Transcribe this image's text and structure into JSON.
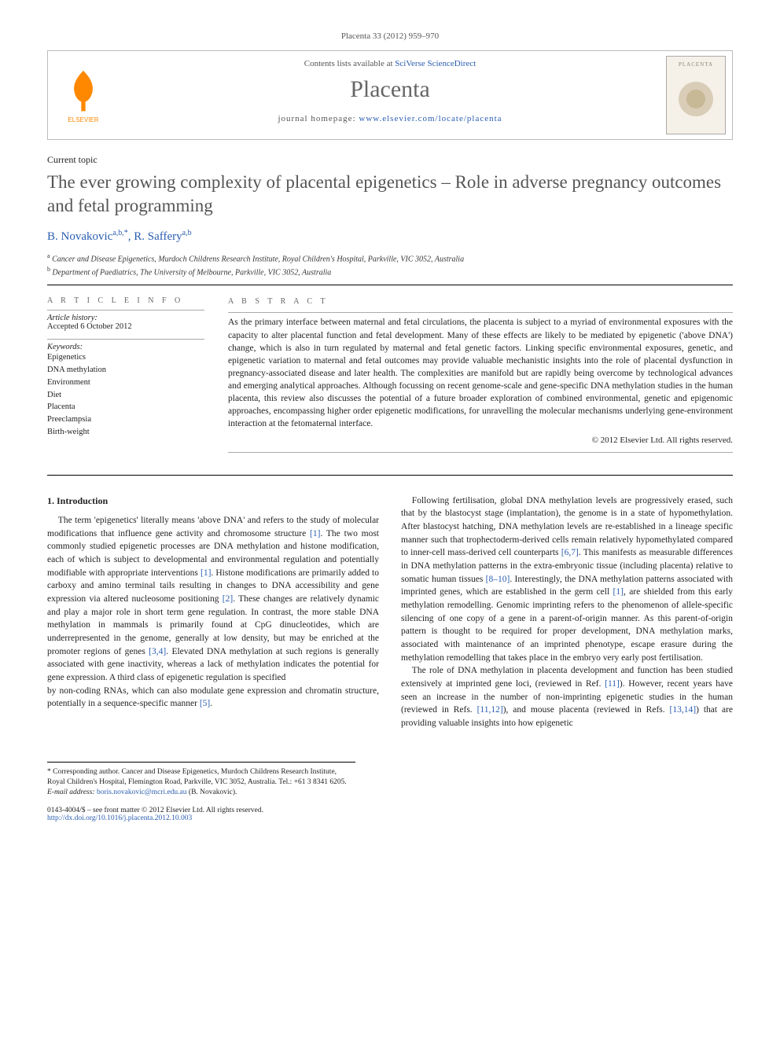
{
  "page_header": "Placenta 33 (2012) 959–970",
  "masthead": {
    "contents_prefix": "Contents lists available at ",
    "contents_link": "SciVerse ScienceDirect",
    "journal": "Placenta",
    "homepage_prefix": "journal homepage: ",
    "homepage_url": "www.elsevier.com/locate/placenta",
    "publisher_logo_label": "ELSEVIER",
    "cover_label": "PLACENTA"
  },
  "article": {
    "type": "Current topic",
    "title": "The ever growing complexity of placental epigenetics – Role in adverse pregnancy outcomes and fetal programming",
    "authors_html": "B. Novakovic",
    "author1": "B. Novakovic",
    "author1_sup": "a,b,*",
    "author2": "R. Saffery",
    "author2_sup": "a,b",
    "affiliations": [
      {
        "sup": "a",
        "text": "Cancer and Disease Epigenetics, Murdoch Childrens Research Institute, Royal Children's Hospital, Parkville, VIC 3052, Australia"
      },
      {
        "sup": "b",
        "text": "Department of Paediatrics, The University of Melbourne, Parkville, VIC 3052, Australia"
      }
    ]
  },
  "info": {
    "heading": "A R T I C L E  I N F O",
    "history_label": "Article history:",
    "history": "Accepted 6 October 2012",
    "keywords_label": "Keywords:",
    "keywords": [
      "Epigenetics",
      "DNA methylation",
      "Environment",
      "Diet",
      "Placenta",
      "Preeclampsia",
      "Birth-weight"
    ]
  },
  "abstract": {
    "heading": "A B S T R A C T",
    "text": "As the primary interface between maternal and fetal circulations, the placenta is subject to a myriad of environmental exposures with the capacity to alter placental function and fetal development. Many of these effects are likely to be mediated by epigenetic ('above DNA') change, which is also in turn regulated by maternal and fetal genetic factors. Linking specific environmental exposures, genetic, and epigenetic variation to maternal and fetal outcomes may provide valuable mechanistic insights into the role of placental dysfunction in pregnancy-associated disease and later health. The complexities are manifold but are rapidly being overcome by technological advances and emerging analytical approaches. Although focussing on recent genome-scale and gene-specific DNA methylation studies in the human placenta, this review also discusses the potential of a future broader exploration of combined environmental, genetic and epigenomic approaches, encompassing higher order epigenetic modifications, for unravelling the molecular mechanisms underlying gene-environment interaction at the fetomaternal interface.",
    "copyright": "© 2012 Elsevier Ltd. All rights reserved."
  },
  "body": {
    "section1_heading": "1. Introduction",
    "p1": "The term 'epigenetics' literally means 'above DNA' and refers to the study of molecular modifications that influence gene activity and chromosome structure [1]. The two most commonly studied epigenetic processes are DNA methylation and histone modification, each of which is subject to developmental and environmental regulation and potentially modifiable with appropriate interventions [1]. Histone modifications are primarily added to carboxy and amino terminal tails resulting in changes to DNA accessibility and gene expression via altered nucleosome positioning [2]. These changes are relatively dynamic and play a major role in short term gene regulation. In contrast, the more stable DNA methylation in mammals is primarily found at CpG dinucleotides, which are underrepresented in the genome, generally at low density, but may be enriched at the promoter regions of genes [3,4]. Elevated DNA methylation at such regions is generally associated with gene inactivity, whereas a lack of methylation indicates the potential for gene expression. A third class of epigenetic regulation is specified",
    "p2": "by non-coding RNAs, which can also modulate gene expression and chromatin structure, potentially in a sequence-specific manner [5].",
    "p3": "Following fertilisation, global DNA methylation levels are progressively erased, such that by the blastocyst stage (implantation), the genome is in a state of hypomethylation. After blastocyst hatching, DNA methylation levels are re-established in a lineage specific manner such that trophectoderm-derived cells remain relatively hypomethylated compared to inner-cell mass-derived cell counterparts [6,7]. This manifests as measurable differences in DNA methylation patterns in the extra-embryonic tissue (including placenta) relative to somatic human tissues [8–10]. Interestingly, the DNA methylation patterns associated with imprinted genes, which are established in the germ cell [1], are shielded from this early methylation remodelling. Genomic imprinting refers to the phenomenon of allele-specific silencing of one copy of a gene in a parent-of-origin manner. As this parent-of-origin pattern is thought to be required for proper development, DNA methylation marks, associated with maintenance of an imprinted phenotype, escape erasure during the methylation remodelling that takes place in the embryo very early post fertilisation.",
    "p4": "The role of DNA methylation in placenta development and function has been studied extensively at imprinted gene loci, (reviewed in Ref. [11]). However, recent years have seen an increase in the number of non-imprinting epigenetic studies in the human (reviewed in Refs. [11,12]), and mouse placenta (reviewed in Refs. [13,14]) that are providing valuable insights into how epigenetic"
  },
  "footnote": {
    "corresponding": "* Corresponding author. Cancer and Disease Epigenetics, Murdoch Childrens Research Institute, Royal Children's Hospital, Flemington Road, Parkville, VIC 3052, Australia. Tel.: +61 3 8341 6205.",
    "email_label": "E-mail address: ",
    "email": "boris.novakovic@mcri.edu.au",
    "email_suffix": " (B. Novakovic)."
  },
  "bottom": {
    "line1": "0143-4004/$ – see front matter © 2012 Elsevier Ltd. All rights reserved.",
    "doi": "http://dx.doi.org/10.1016/j.placenta.2012.10.003"
  },
  "colors": {
    "link": "#2a5db0",
    "heading_gray": "#555555",
    "elsevier_orange": "#ff8800"
  }
}
